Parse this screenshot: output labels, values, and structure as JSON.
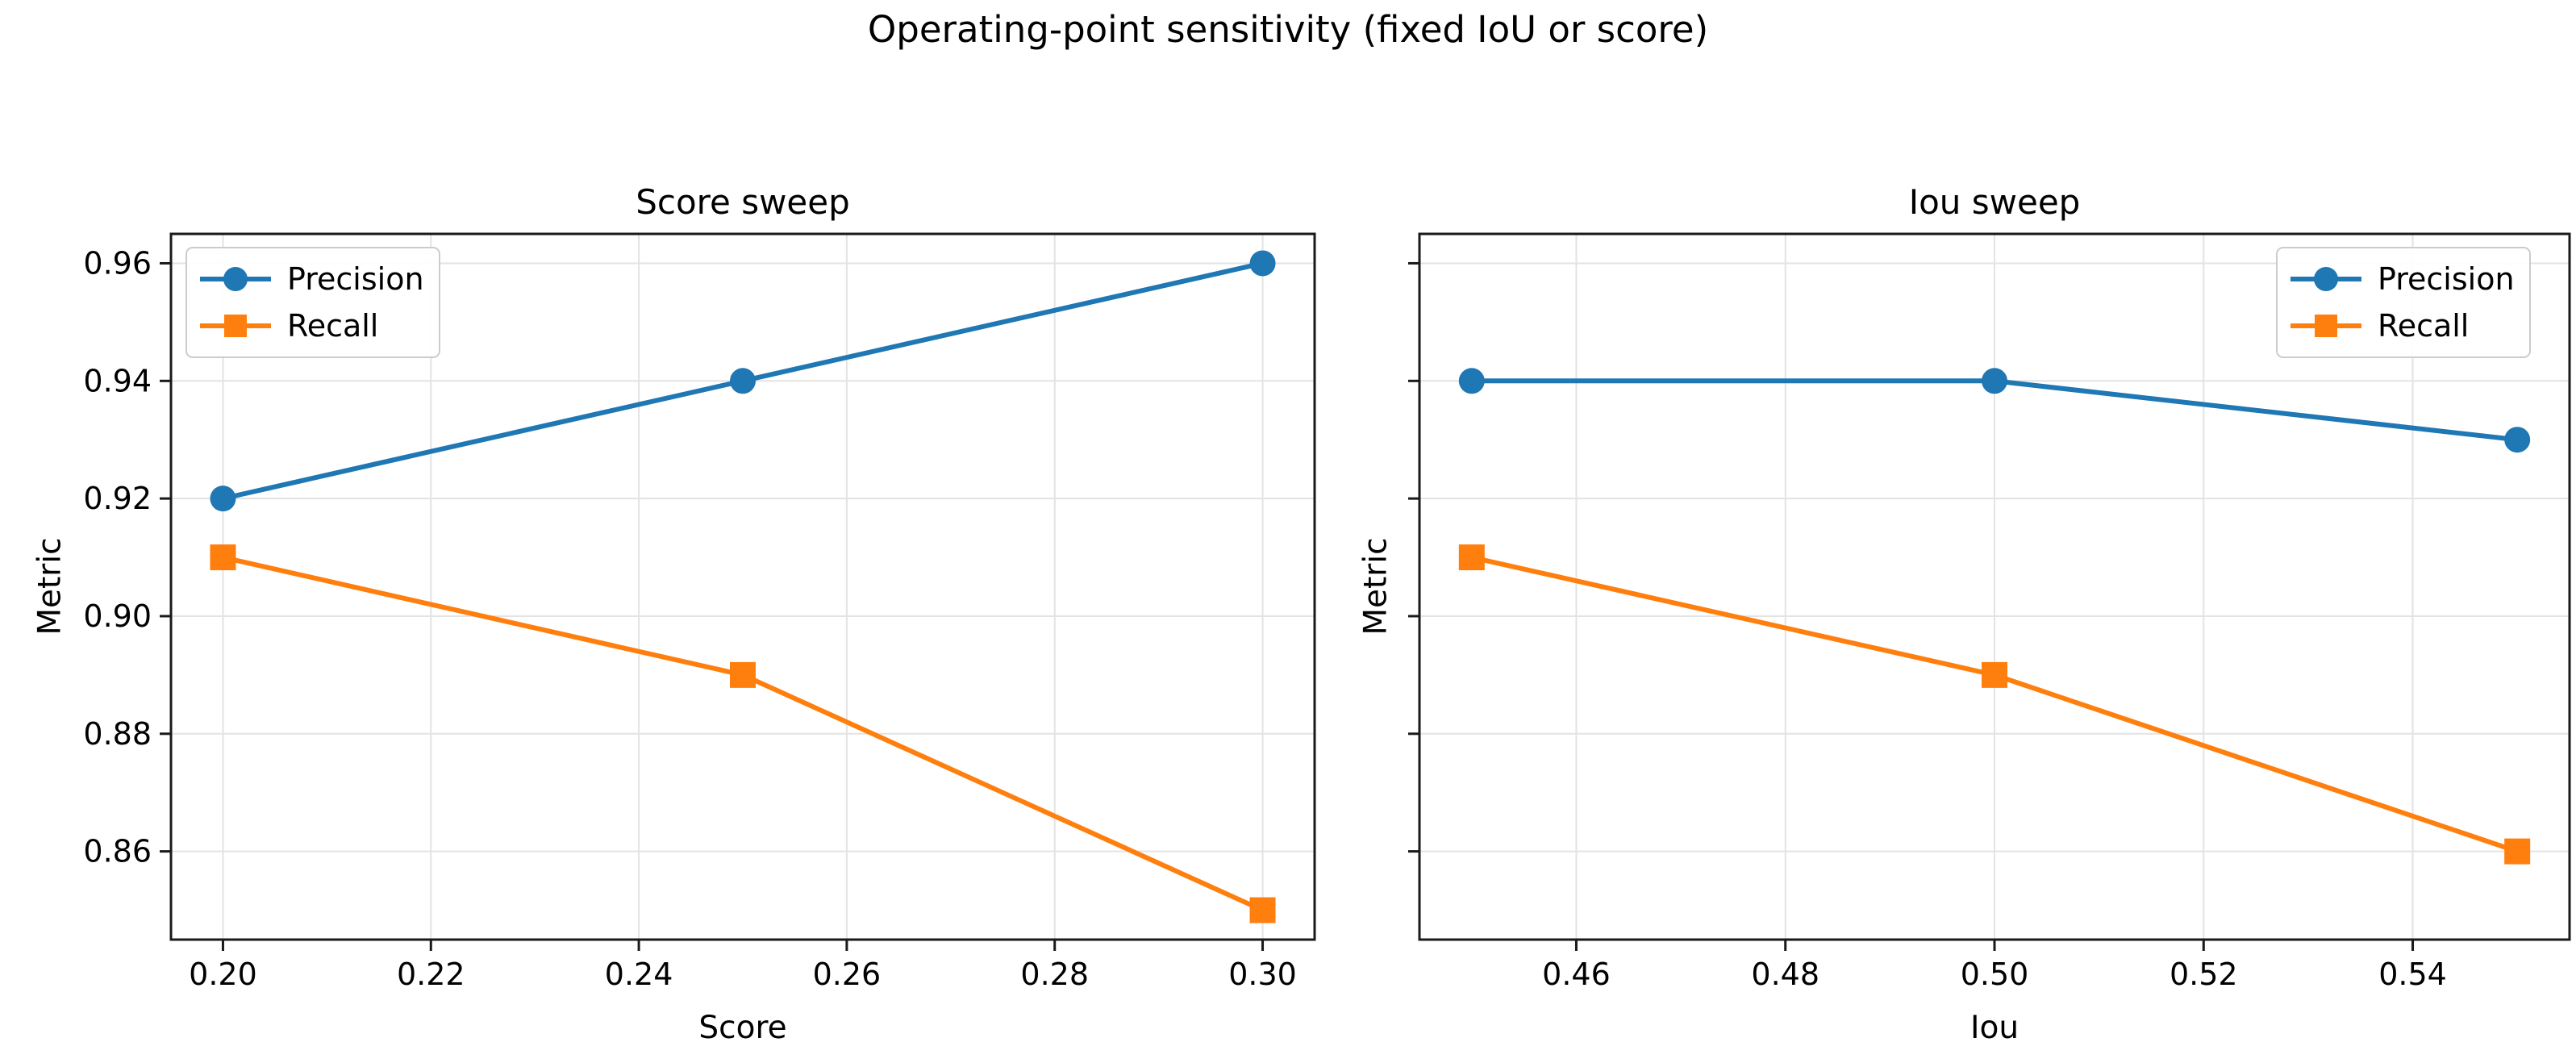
{
  "suptitle": "Operating-point sensitivity (fixed IoU or score)",
  "colors": {
    "precision": "#1f77b4",
    "recall": "#ff7f0e",
    "grid": "#e3e3e3",
    "spine": "#1a1a1a",
    "text": "#000000",
    "legend_border": "#cccccc"
  },
  "chart_data": [
    {
      "type": "line",
      "title": "Score sweep",
      "xlabel": "Score",
      "ylabel": "Metric",
      "x": [
        0.2,
        0.25,
        0.3
      ],
      "series": [
        {
          "name": "Precision",
          "values": [
            0.92,
            0.94,
            0.96
          ],
          "color_key": "precision",
          "marker": "circle"
        },
        {
          "name": "Recall",
          "values": [
            0.91,
            0.89,
            0.85
          ],
          "color_key": "recall",
          "marker": "square"
        }
      ],
      "xlim": [
        0.195,
        0.305
      ],
      "ylim": [
        0.845,
        0.965
      ],
      "xticks": [
        0.2,
        0.22,
        0.24,
        0.26,
        0.28,
        0.3
      ],
      "xtick_labels": [
        "0.20",
        "0.22",
        "0.24",
        "0.26",
        "0.28",
        "0.30"
      ],
      "yticks": [
        0.86,
        0.88,
        0.9,
        0.92,
        0.94,
        0.96
      ],
      "ytick_labels": [
        "0.86",
        "0.88",
        "0.90",
        "0.92",
        "0.94",
        "0.96"
      ],
      "grid": true,
      "legend_position": "upper-left"
    },
    {
      "type": "line",
      "title": "Iou sweep",
      "xlabel": "Iou",
      "ylabel": "Metric",
      "x": [
        0.45,
        0.5,
        0.55
      ],
      "series": [
        {
          "name": "Precision",
          "values": [
            0.94,
            0.94,
            0.93
          ],
          "color_key": "precision",
          "marker": "circle"
        },
        {
          "name": "Recall",
          "values": [
            0.91,
            0.89,
            0.86
          ],
          "color_key": "recall",
          "marker": "square"
        }
      ],
      "xlim": [
        0.445,
        0.555
      ],
      "ylim": [
        0.845,
        0.965
      ],
      "xticks": [
        0.46,
        0.48,
        0.5,
        0.52,
        0.54
      ],
      "xtick_labels": [
        "0.46",
        "0.48",
        "0.50",
        "0.52",
        "0.54"
      ],
      "yticks": [
        0.86,
        0.88,
        0.9,
        0.92,
        0.94,
        0.96
      ],
      "ytick_labels": [],
      "grid": true,
      "legend_position": "upper-right"
    }
  ]
}
